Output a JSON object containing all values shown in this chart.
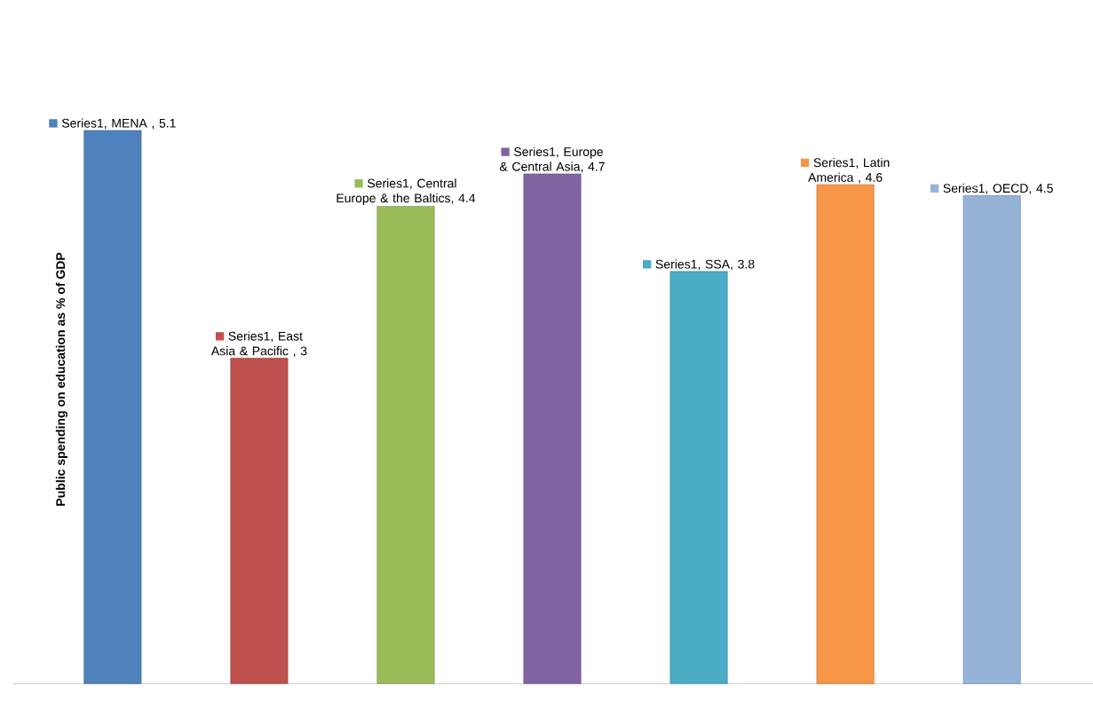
{
  "chart_data": {
    "type": "bar",
    "ylabel": "Public spending on education as % of GDP",
    "categories": [
      null,
      null,
      null,
      null,
      null,
      null,
      null
    ],
    "values": [
      5.1,
      3,
      4.4,
      4.7,
      3.8,
      4.6,
      4.5
    ],
    "colors": [
      "#4f81bd",
      "#c0504d",
      "#9bbb59",
      "#8064a2",
      "#4bacc6",
      "#f79646",
      "#95b3d7"
    ],
    "value_labels": [
      "Series1, MENA , 5.1",
      "Series1, East Asia & Pacific , 3",
      "Series1, Central Europe  & the Baltics, 4.4",
      "Series1, Europe & Central Asia, 4.7",
      "Series1, SSA, 3.8",
      "Series1, Latin America , 4.6",
      "Series1, OECD, 4.5"
    ],
    "stacked": false
  }
}
